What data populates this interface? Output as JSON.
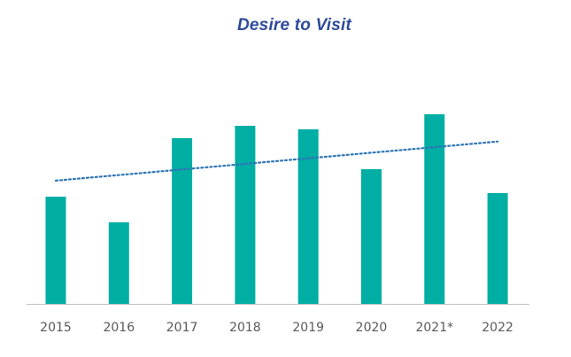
{
  "chart_data": {
    "type": "bar",
    "title": "Desire to Visit",
    "xlabel": "",
    "ylabel": "",
    "categories": [
      "2015",
      "2016",
      "2017",
      "2018",
      "2019",
      "2020",
      "2021*",
      "2022"
    ],
    "values": [
      121,
      92,
      187,
      201,
      197,
      152,
      214,
      125
    ],
    "ylim": [
      0,
      240
    ],
    "trendline": {
      "type": "linear",
      "style": "dotted"
    },
    "grid": false,
    "legend": "none",
    "colors": {
      "bar": "#00aea4",
      "trendline": "#2e75b6",
      "title": "#2e4a9a",
      "axis": "#bfbfbf",
      "tick_label": "#595959"
    }
  }
}
